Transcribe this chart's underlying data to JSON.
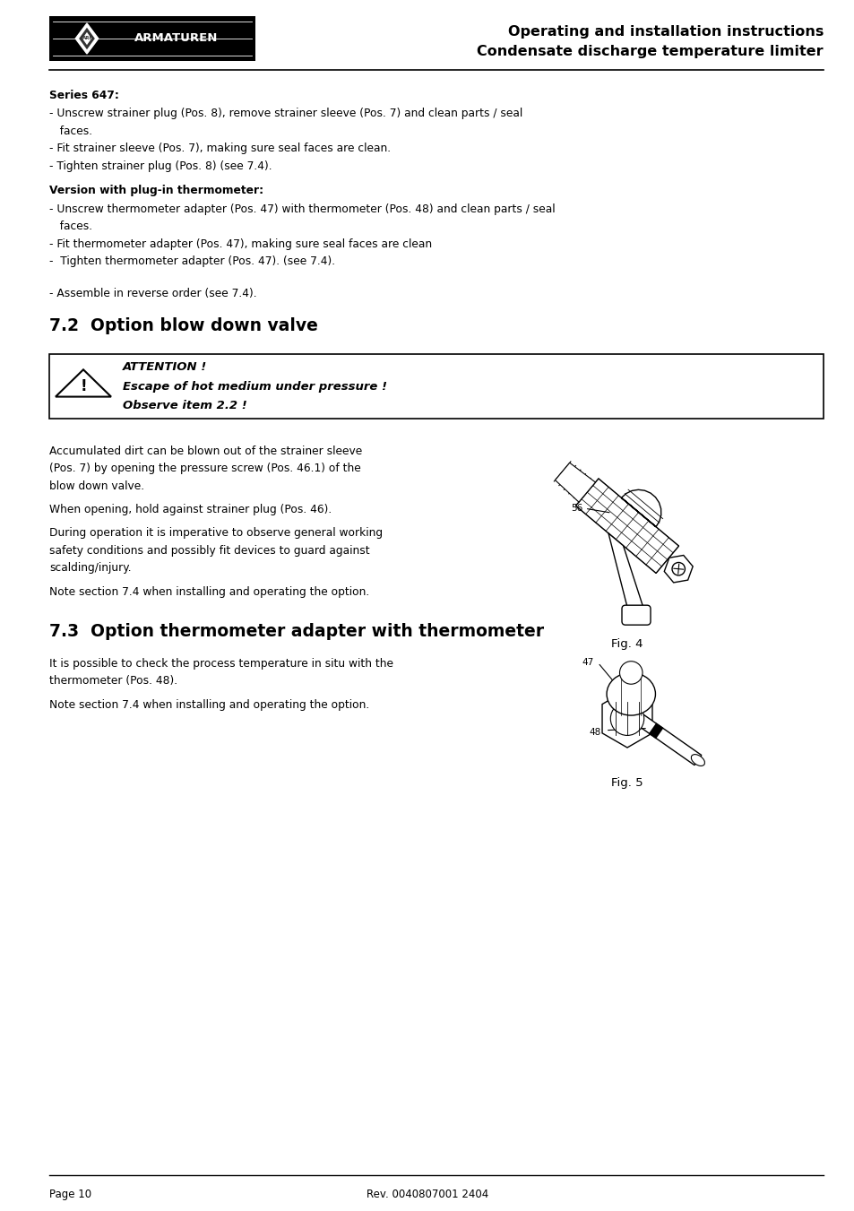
{
  "page_width": 9.54,
  "page_height": 13.51,
  "bg_color": "#ffffff",
  "header": {
    "title_line1": "Operating and installation instructions",
    "title_line2": "Condensate discharge temperature limiter"
  },
  "section_series": {
    "heading": "Series 647:",
    "bullets": [
      "- Unscrew strainer plug (Pos. 8), remove strainer sleeve (Pos. 7) and clean parts / seal",
      "   faces.",
      "- Fit strainer sleeve (Pos. 7), making sure seal faces are clean.",
      "- Tighten strainer plug (Pos. 8) (see 7.4)."
    ]
  },
  "section_version": {
    "heading": "Version with plug-in thermometer:",
    "bullets": [
      "- Unscrew thermometer adapter (Pos. 47) with thermometer (Pos. 48) and clean parts / seal",
      "   faces.",
      "- Fit thermometer adapter (Pos. 47), making sure seal faces are clean",
      "-  Tighten thermometer adapter (Pos. 47). (see 7.4)."
    ]
  },
  "assemble_line": "- Assemble in reverse order (see 7.4).",
  "section_72": {
    "heading": "7.2  Option blow down valve"
  },
  "attention_box": {
    "text_line1": "ATTENTION !",
    "text_line2": "Escape of hot medium under pressure !",
    "text_line3": "Observe item 2.2 !"
  },
  "para_blowdown": [
    "Accumulated dirt can be blown out of the strainer sleeve\n(Pos. 7) by opening the pressure screw (Pos. 46.1) of the\nblow down valve.",
    "When opening, hold against strainer plug (Pos. 46).",
    "During operation it is imperative to observe general working\nsafety conditions and possibly fit devices to guard against\nscalding/injury.",
    "Note section 7.4 when installing and operating the option."
  ],
  "fig4_caption": "Fig. 4",
  "section_73": {
    "heading": "7.3  Option thermometer adapter with thermometer"
  },
  "para_thermo": [
    "It is possible to check the process temperature in situ with the\nthermometer (Pos. 48).",
    "Note section 7.4 when installing and operating the option."
  ],
  "fig5_caption": "Fig. 5",
  "footer_left": "Page 10",
  "footer_right": "Rev. 0040807001 2404"
}
